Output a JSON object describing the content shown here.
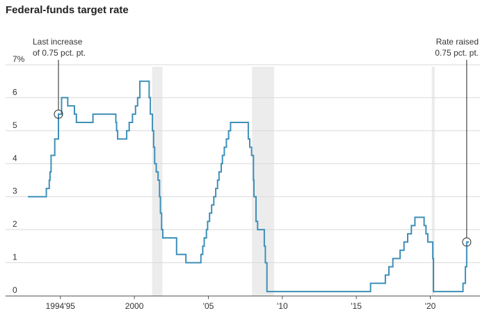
{
  "chart_data": {
    "type": "line",
    "title": "Federal-funds target rate",
    "xlabel": "",
    "ylabel": "",
    "xlim": [
      1992.8,
      2022.75
    ],
    "ylim": [
      0,
      7
    ],
    "y_ticks": [
      {
        "value": 0,
        "label": "0"
      },
      {
        "value": 1,
        "label": "1"
      },
      {
        "value": 2,
        "label": "2"
      },
      {
        "value": 3,
        "label": "3"
      },
      {
        "value": 4,
        "label": "4"
      },
      {
        "value": 5,
        "label": "5"
      },
      {
        "value": 6,
        "label": "6"
      },
      {
        "value": 7,
        "label": "7%"
      }
    ],
    "x_ticks": [
      {
        "value": 1995,
        "label": "1994'95"
      },
      {
        "value": 2000,
        "label": "2000"
      },
      {
        "value": 2005,
        "label": "'05"
      },
      {
        "value": 2010,
        "label": "'10"
      },
      {
        "value": 2015,
        "label": "'15"
      },
      {
        "value": 2020,
        "label": "'20"
      }
    ],
    "recessions": [
      [
        2001.2,
        2001.9
      ],
      [
        2007.95,
        2009.45
      ],
      [
        2020.1,
        2020.3
      ]
    ],
    "colors": {
      "line": "#3d8fb8",
      "recession": "#ececec",
      "grid": "#d9d9d9",
      "axis": "#555555"
    },
    "series": [
      {
        "name": "",
        "points": [
          [
            1992.8,
            3.0
          ],
          [
            1994.05,
            3.0
          ],
          [
            1994.05,
            3.25
          ],
          [
            1994.25,
            3.25
          ],
          [
            1994.25,
            3.5
          ],
          [
            1994.3,
            3.5
          ],
          [
            1994.3,
            3.75
          ],
          [
            1994.37,
            3.75
          ],
          [
            1994.37,
            4.25
          ],
          [
            1994.62,
            4.25
          ],
          [
            1994.62,
            4.75
          ],
          [
            1994.87,
            4.75
          ],
          [
            1994.87,
            5.5
          ],
          [
            1995.08,
            5.5
          ],
          [
            1995.08,
            6.0
          ],
          [
            1995.5,
            6.0
          ],
          [
            1995.5,
            5.75
          ],
          [
            1995.95,
            5.75
          ],
          [
            1995.95,
            5.5
          ],
          [
            1996.08,
            5.5
          ],
          [
            1996.08,
            5.25
          ],
          [
            1997.2,
            5.25
          ],
          [
            1997.2,
            5.5
          ],
          [
            1998.75,
            5.5
          ],
          [
            1998.75,
            5.25
          ],
          [
            1998.8,
            5.25
          ],
          [
            1998.8,
            5.0
          ],
          [
            1998.87,
            5.0
          ],
          [
            1998.87,
            4.75
          ],
          [
            1999.48,
            4.75
          ],
          [
            1999.48,
            5.0
          ],
          [
            1999.65,
            5.0
          ],
          [
            1999.65,
            5.25
          ],
          [
            1999.87,
            5.25
          ],
          [
            1999.87,
            5.5
          ],
          [
            2000.08,
            5.5
          ],
          [
            2000.08,
            5.75
          ],
          [
            2000.22,
            5.75
          ],
          [
            2000.22,
            6.0
          ],
          [
            2000.37,
            6.0
          ],
          [
            2000.37,
            6.5
          ],
          [
            2001.0,
            6.5
          ],
          [
            2001.0,
            6.0
          ],
          [
            2001.08,
            6.0
          ],
          [
            2001.08,
            5.5
          ],
          [
            2001.22,
            5.5
          ],
          [
            2001.22,
            5.0
          ],
          [
            2001.3,
            5.0
          ],
          [
            2001.3,
            4.5
          ],
          [
            2001.37,
            4.5
          ],
          [
            2001.37,
            4.0
          ],
          [
            2001.48,
            4.0
          ],
          [
            2001.48,
            3.75
          ],
          [
            2001.6,
            3.75
          ],
          [
            2001.6,
            3.5
          ],
          [
            2001.7,
            3.5
          ],
          [
            2001.7,
            3.0
          ],
          [
            2001.76,
            3.0
          ],
          [
            2001.76,
            2.5
          ],
          [
            2001.84,
            2.5
          ],
          [
            2001.84,
            2.0
          ],
          [
            2001.92,
            2.0
          ],
          [
            2001.92,
            1.75
          ],
          [
            2002.85,
            1.75
          ],
          [
            2002.85,
            1.25
          ],
          [
            2003.48,
            1.25
          ],
          [
            2003.48,
            1.0
          ],
          [
            2004.5,
            1.0
          ],
          [
            2004.5,
            1.25
          ],
          [
            2004.62,
            1.25
          ],
          [
            2004.62,
            1.5
          ],
          [
            2004.72,
            1.5
          ],
          [
            2004.72,
            1.75
          ],
          [
            2004.87,
            1.75
          ],
          [
            2004.87,
            2.0
          ],
          [
            2004.95,
            2.0
          ],
          [
            2004.95,
            2.25
          ],
          [
            2005.08,
            2.25
          ],
          [
            2005.08,
            2.5
          ],
          [
            2005.22,
            2.5
          ],
          [
            2005.22,
            2.75
          ],
          [
            2005.37,
            2.75
          ],
          [
            2005.37,
            3.0
          ],
          [
            2005.5,
            3.0
          ],
          [
            2005.5,
            3.25
          ],
          [
            2005.62,
            3.25
          ],
          [
            2005.62,
            3.5
          ],
          [
            2005.72,
            3.5
          ],
          [
            2005.72,
            3.75
          ],
          [
            2005.87,
            3.75
          ],
          [
            2005.87,
            4.0
          ],
          [
            2005.95,
            4.0
          ],
          [
            2005.95,
            4.25
          ],
          [
            2006.08,
            4.25
          ],
          [
            2006.08,
            4.5
          ],
          [
            2006.22,
            4.5
          ],
          [
            2006.22,
            4.75
          ],
          [
            2006.37,
            4.75
          ],
          [
            2006.37,
            5.0
          ],
          [
            2006.5,
            5.0
          ],
          [
            2006.5,
            5.25
          ],
          [
            2007.7,
            5.25
          ],
          [
            2007.7,
            4.75
          ],
          [
            2007.8,
            4.75
          ],
          [
            2007.8,
            4.5
          ],
          [
            2007.92,
            4.5
          ],
          [
            2007.92,
            4.25
          ],
          [
            2008.05,
            4.25
          ],
          [
            2008.05,
            3.5
          ],
          [
            2008.08,
            3.5
          ],
          [
            2008.08,
            3.0
          ],
          [
            2008.22,
            3.0
          ],
          [
            2008.22,
            2.25
          ],
          [
            2008.33,
            2.25
          ],
          [
            2008.33,
            2.0
          ],
          [
            2008.78,
            2.0
          ],
          [
            2008.78,
            1.5
          ],
          [
            2008.85,
            1.5
          ],
          [
            2008.85,
            1.0
          ],
          [
            2008.96,
            1.0
          ],
          [
            2008.96,
            0.125
          ],
          [
            2015.96,
            0.125
          ],
          [
            2015.96,
            0.375
          ],
          [
            2016.96,
            0.375
          ],
          [
            2016.96,
            0.625
          ],
          [
            2017.2,
            0.625
          ],
          [
            2017.2,
            0.875
          ],
          [
            2017.47,
            0.875
          ],
          [
            2017.47,
            1.125
          ],
          [
            2017.96,
            1.125
          ],
          [
            2017.96,
            1.375
          ],
          [
            2018.22,
            1.375
          ],
          [
            2018.22,
            1.625
          ],
          [
            2018.47,
            1.625
          ],
          [
            2018.47,
            1.875
          ],
          [
            2018.72,
            1.875
          ],
          [
            2018.72,
            2.125
          ],
          [
            2018.96,
            2.125
          ],
          [
            2018.96,
            2.375
          ],
          [
            2019.58,
            2.375
          ],
          [
            2019.58,
            2.125
          ],
          [
            2019.71,
            2.125
          ],
          [
            2019.71,
            1.875
          ],
          [
            2019.83,
            1.875
          ],
          [
            2019.83,
            1.625
          ],
          [
            2020.17,
            1.625
          ],
          [
            2020.17,
            1.125
          ],
          [
            2020.21,
            1.125
          ],
          [
            2020.21,
            0.125
          ],
          [
            2022.21,
            0.125
          ],
          [
            2022.21,
            0.375
          ],
          [
            2022.37,
            0.375
          ],
          [
            2022.37,
            0.875
          ],
          [
            2022.46,
            0.875
          ],
          [
            2022.46,
            1.625
          ],
          [
            2022.62,
            1.625
          ]
        ]
      }
    ],
    "annotations": [
      {
        "lines": [
          "Last increase",
          "of 0.75 pct. pt."
        ],
        "x": 1994.87,
        "y": 5.5,
        "align": "left"
      },
      {
        "lines": [
          "Rate raised",
          "0.75 pct. pt."
        ],
        "x": 2022.46,
        "y": 1.625,
        "align": "right"
      }
    ]
  }
}
